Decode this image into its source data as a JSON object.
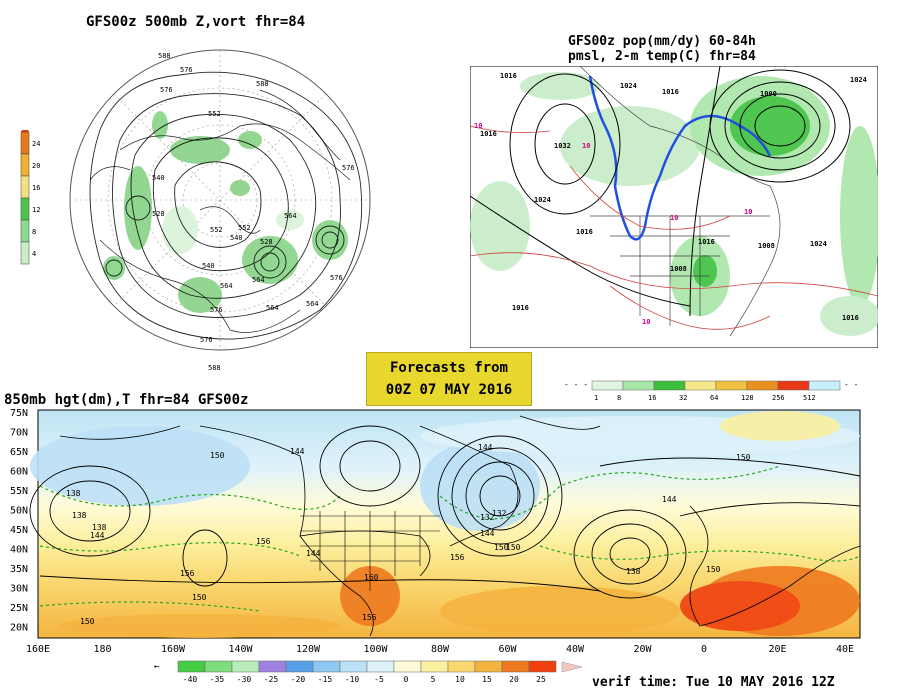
{
  "panel_500mb": {
    "title": "GFS00z  500mb Z,vort   fhr=84",
    "colorbar": {
      "ticks": [
        "24",
        "20",
        "16",
        "12",
        "8",
        "4"
      ],
      "colors": [
        "#e8781a",
        "#f0b030",
        "#f2e080",
        "#4ec24e",
        "#8fd88f",
        "#c8eec8"
      ]
    },
    "contour_labels": [
      "588",
      "576",
      "588",
      "576",
      "552",
      "540",
      "528",
      "552",
      "540",
      "564",
      "576",
      "576",
      "564",
      "564",
      "576",
      "564",
      "552",
      "588",
      "576",
      "564",
      "540",
      "528"
    ]
  },
  "panel_qpf": {
    "title_line1": "GFS00z pop(mm/dy) 60-84h",
    "title_line2": "pmsl, 2-m temp(C)  fhr=84",
    "isobar_labels": [
      "1016",
      "1016",
      "1032",
      "1024",
      "1024",
      "1016",
      "1016",
      "1008",
      "1000",
      "1024",
      "1016",
      "1008",
      "1016",
      "1024",
      "1016"
    ],
    "temp_labels": [
      "10",
      "10",
      "10",
      "10",
      "10"
    ],
    "colorbar": {
      "ticks": [
        "1",
        "8",
        "16",
        "32",
        "64",
        "128",
        "256",
        "512"
      ],
      "colors": [
        "#e0f5e0",
        "#a8e6a8",
        "#3cc03c",
        "#f6e88a",
        "#f0c040",
        "#e89020",
        "#e83818",
        "#c8f0f8"
      ]
    }
  },
  "forecast_box": {
    "line1": "Forecasts from",
    "line2": "00Z 07 MAY 2016"
  },
  "panel_850mb": {
    "title": "850mb hgt(dm),T  fhr=84 GFS00z",
    "lat_labels": [
      "75N",
      "70N",
      "65N",
      "60N",
      "55N",
      "50N",
      "45N",
      "40N",
      "35N",
      "30N",
      "25N",
      "20N"
    ],
    "lon_labels": [
      "160E",
      "180",
      "160W",
      "140W",
      "120W",
      "100W",
      "80W",
      "60W",
      "40W",
      "20W",
      "0",
      "20E",
      "40E"
    ],
    "height_labels": [
      "150",
      "144",
      "144",
      "150",
      "138",
      "132",
      "138",
      "144",
      "156",
      "150",
      "156",
      "150",
      "144",
      "138",
      "132",
      "144",
      "150",
      "156",
      "144",
      "150",
      "138",
      "150",
      "160",
      "156"
    ],
    "colorbar": {
      "ticks": [
        "-40",
        "-35",
        "-30",
        "-25",
        "-20",
        "-15",
        "-10",
        "-5",
        "0",
        "5",
        "10",
        "15",
        "20",
        "25"
      ],
      "colors": [
        "#44cc44",
        "#7ede7e",
        "#b8ecb8",
        "#a080e0",
        "#5aa0e8",
        "#8cc8f0",
        "#bce0f6",
        "#dff2fb",
        "#fffbd8",
        "#fcf0a0",
        "#f9d870",
        "#f5b440",
        "#ef7a20",
        "#f04010"
      ]
    }
  },
  "verif_time": "verif time: Tue 10 MAY 2016 12Z"
}
